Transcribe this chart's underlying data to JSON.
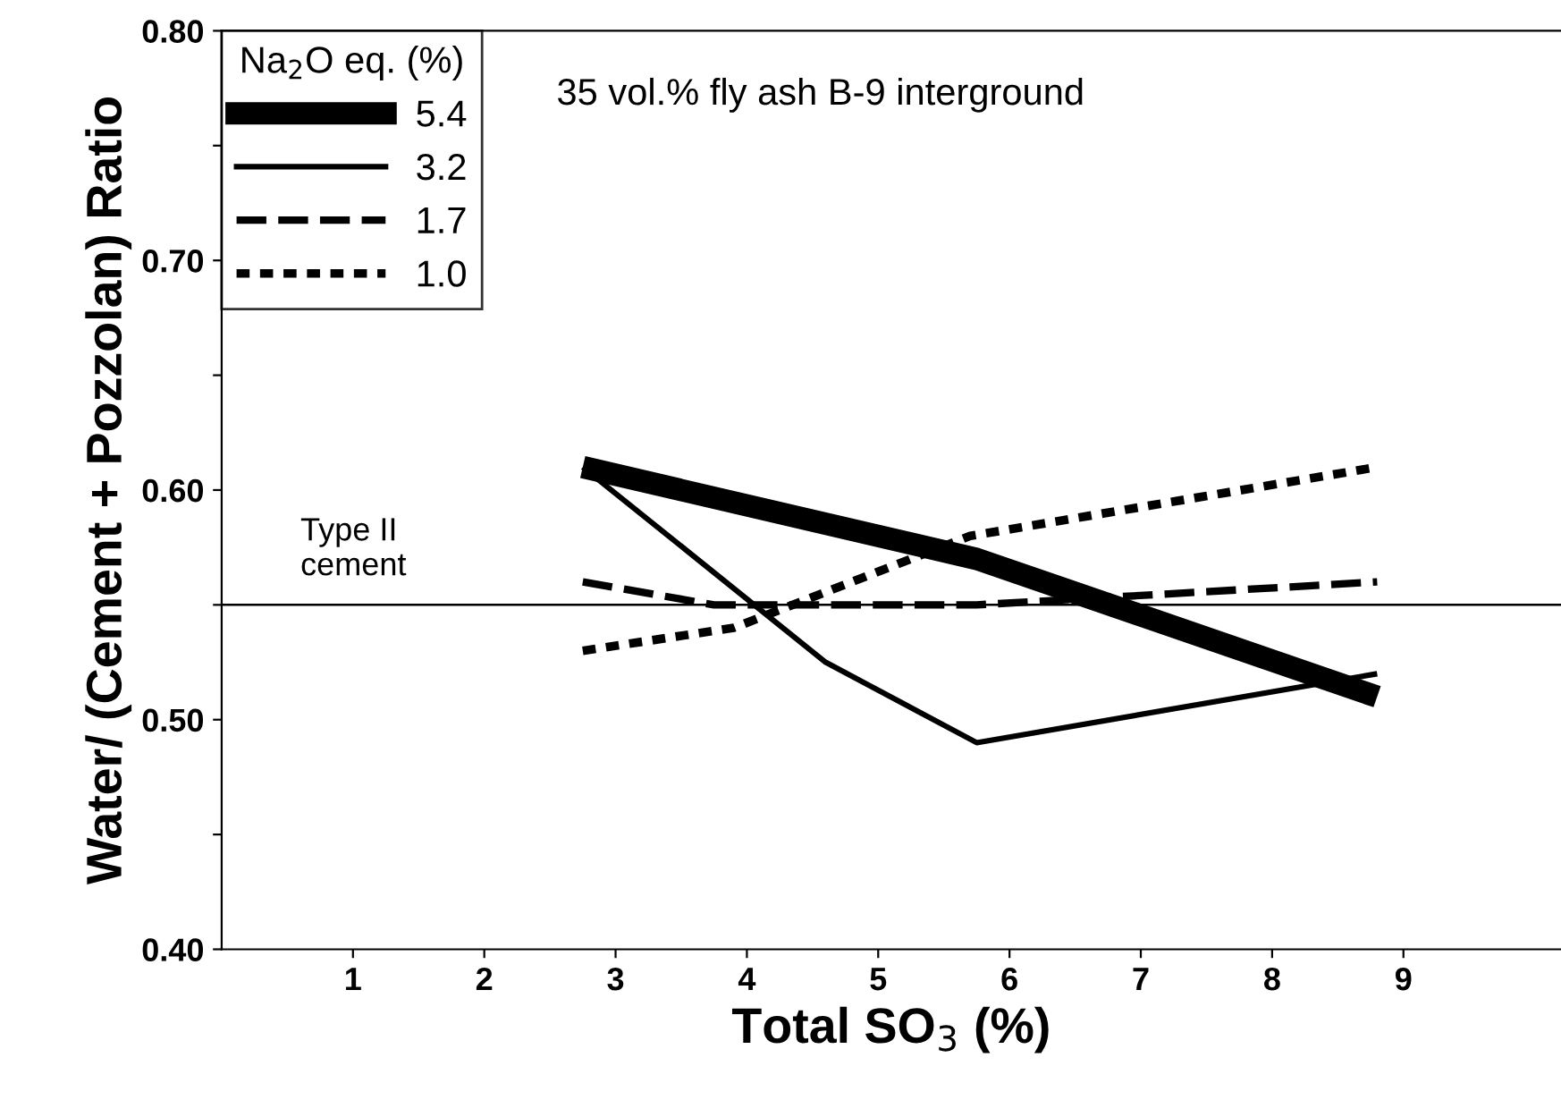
{
  "chart_data": {
    "type": "line",
    "xlabel": "Total SO$_{3}$ (%)",
    "ylabel": "Water/ (Cement + Pozzolan) Ratio",
    "legend_title": "Na$_{2}$O eq. (%)",
    "annotations": [
      "35 vol.% fly ash B-9 interground"
    ],
    "xlim": [
      0,
      10.2
    ],
    "xticks": [
      1,
      2,
      3,
      4,
      5,
      6,
      7,
      8,
      9
    ],
    "ylim": [
      0.4,
      0.8
    ],
    "yticks": [
      {
        "value": 0.4,
        "label": "0.40"
      },
      {
        "value": 0.45,
        "label": null
      },
      {
        "value": 0.5,
        "label": "0.50"
      },
      {
        "value": 0.55,
        "label": null
      },
      {
        "value": 0.6,
        "label": "0.60"
      },
      {
        "value": 0.65,
        "label": null
      },
      {
        "value": 0.7,
        "label": "0.70"
      },
      {
        "value": 0.75,
        "label": null
      },
      {
        "value": 0.8,
        "label": "0.80"
      }
    ],
    "ref_lines": [
      {
        "axis": "y",
        "value": 0.55,
        "label": "Type II\ncement",
        "color": "#000000",
        "line_style": "solid"
      }
    ],
    "legend": "top left",
    "grid": false,
    "marker": "none",
    "series": [
      {
        "name": "5.4",
        "color": "#000000",
        "line_style": "solid",
        "x": [
          2.75,
          5.75,
          8.8
        ],
        "values": [
          0.61,
          0.57,
          0.51
        ]
      },
      {
        "name": "3.2",
        "color": "#000000",
        "line_style": "solid",
        "x": [
          2.75,
          4.6,
          5.75,
          8.8
        ],
        "values": [
          0.61,
          0.525,
          0.49,
          0.52
        ]
      },
      {
        "name": "1.7",
        "color": "#000000",
        "line_style": "dashed",
        "x": [
          2.75,
          3.75,
          5.75,
          8.8
        ],
        "values": [
          0.56,
          0.55,
          0.55,
          0.56
        ]
      },
      {
        "name": "1.0",
        "color": "#000000",
        "line_style": "dotted",
        "x": [
          2.75,
          3.9,
          5.7,
          8.8
        ],
        "values": [
          0.53,
          0.54,
          0.58,
          0.61
        ]
      }
    ]
  }
}
